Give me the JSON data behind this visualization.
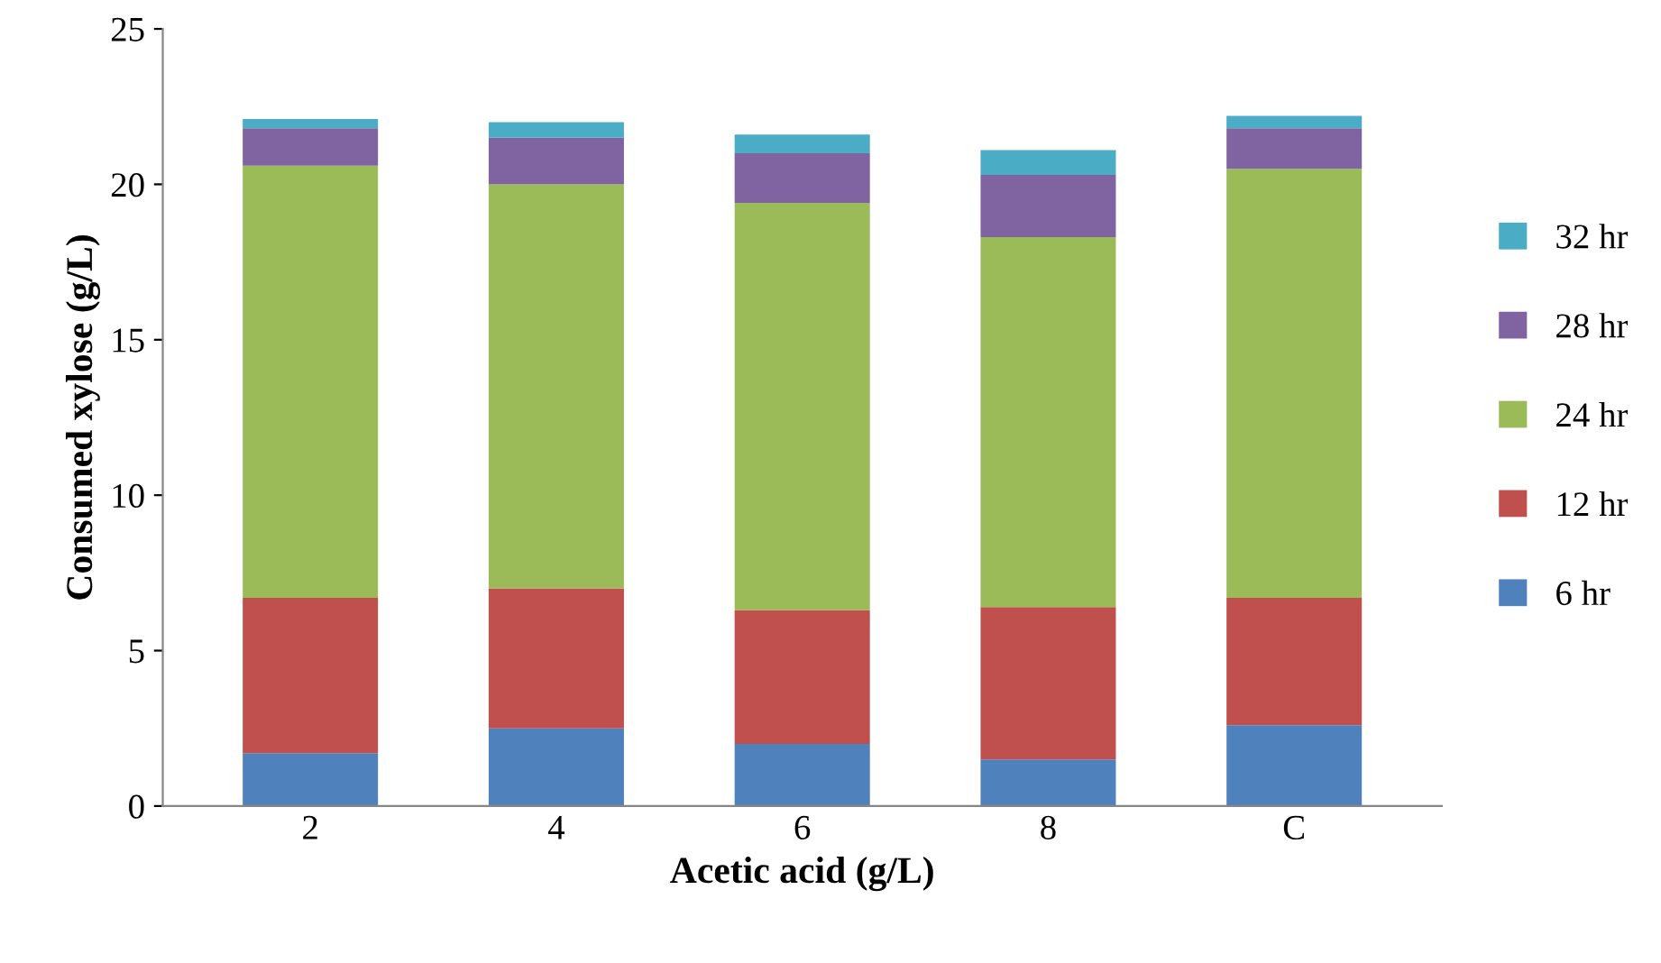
{
  "chart_data": {
    "type": "bar",
    "stacked": true,
    "xlabel": "Acetic acid (g/L)",
    "ylabel": "Consumed xylose (g/L)",
    "categories": [
      "2",
      "4",
      "6",
      "8",
      "C"
    ],
    "series": [
      {
        "name": "6 hr",
        "color": "#4f81bd",
        "values": [
          1.7,
          2.5,
          2.0,
          1.5,
          2.6
        ]
      },
      {
        "name": "12 hr",
        "color": "#c0504d",
        "values": [
          5.0,
          4.5,
          4.3,
          4.9,
          4.1
        ]
      },
      {
        "name": "24 hr",
        "color": "#9bbb59",
        "values": [
          13.9,
          13.0,
          13.1,
          11.9,
          13.8
        ]
      },
      {
        "name": "28 hr",
        "color": "#8064a2",
        "values": [
          1.2,
          1.5,
          1.6,
          2.0,
          1.3
        ]
      },
      {
        "name": "32 hr",
        "color": "#4bacc6",
        "values": [
          0.3,
          0.5,
          0.6,
          0.8,
          0.4
        ]
      }
    ],
    "ylim": [
      0,
      25
    ],
    "yticks": [
      0,
      5,
      10,
      15,
      20,
      25
    ],
    "grid": false,
    "legend": "right"
  }
}
